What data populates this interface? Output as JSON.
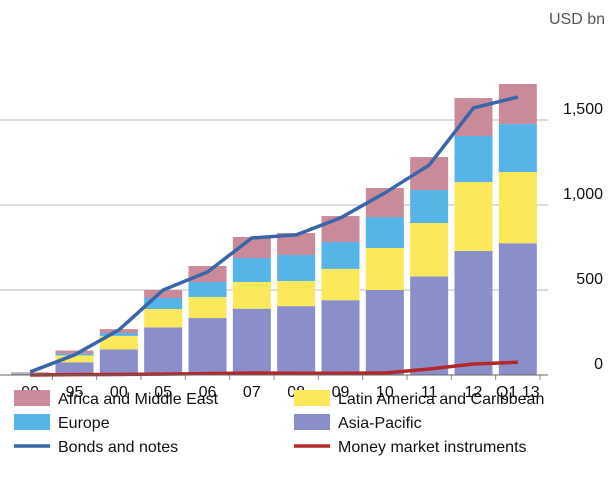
{
  "chart_data": {
    "type": "stacked-bar-line",
    "unit_label": "USD bn",
    "categories": [
      "90",
      "95",
      "00",
      "05",
      "06",
      "07",
      "08",
      "09",
      "10",
      "11",
      "12",
      "Q1 13"
    ],
    "series": [
      {
        "name": "Asia-Pacific",
        "color": "#8a8fca",
        "kind": "bar",
        "values": [
          10,
          75,
          150,
          280,
          335,
          390,
          405,
          440,
          500,
          580,
          730,
          775
        ]
      },
      {
        "name": "Latin America and Caribbean",
        "color": "#fbe95b",
        "kind": "bar",
        "values": [
          3,
          40,
          80,
          108,
          124,
          157,
          148,
          184,
          247,
          314,
          405,
          419
        ]
      },
      {
        "name": "Europe",
        "color": "#56b4e6",
        "kind": "bar",
        "values": [
          2,
          11,
          17,
          65,
          88,
          141,
          153,
          158,
          182,
          194,
          271,
          282
        ]
      },
      {
        "name": "Africa and Middle East",
        "color": "#c98a9a",
        "kind": "bar",
        "values": [
          2,
          18,
          23,
          47,
          94,
          124,
          129,
          153,
          171,
          194,
          223,
          236
        ]
      },
      {
        "name": "Bonds and notes",
        "color": "#3a65a8",
        "kind": "line",
        "values": [
          18,
          118,
          265,
          500,
          606,
          806,
          824,
          924,
          1071,
          1235,
          1571,
          1635
        ]
      },
      {
        "name": "Money market instruments",
        "color": "#b5282a",
        "kind": "line",
        "values": [
          0,
          2,
          3,
          5,
          8,
          12,
          10,
          10,
          12,
          35,
          65,
          75
        ]
      }
    ],
    "legend_order": [
      3,
      1,
      2,
      0,
      4,
      5
    ],
    "ylim": [
      0,
      2000
    ],
    "yticks": [
      0,
      500,
      {
        "value": 1000,
        "label": "1,000"
      },
      {
        "value": 1500,
        "label": "1,500"
      }
    ],
    "grid": true
  }
}
